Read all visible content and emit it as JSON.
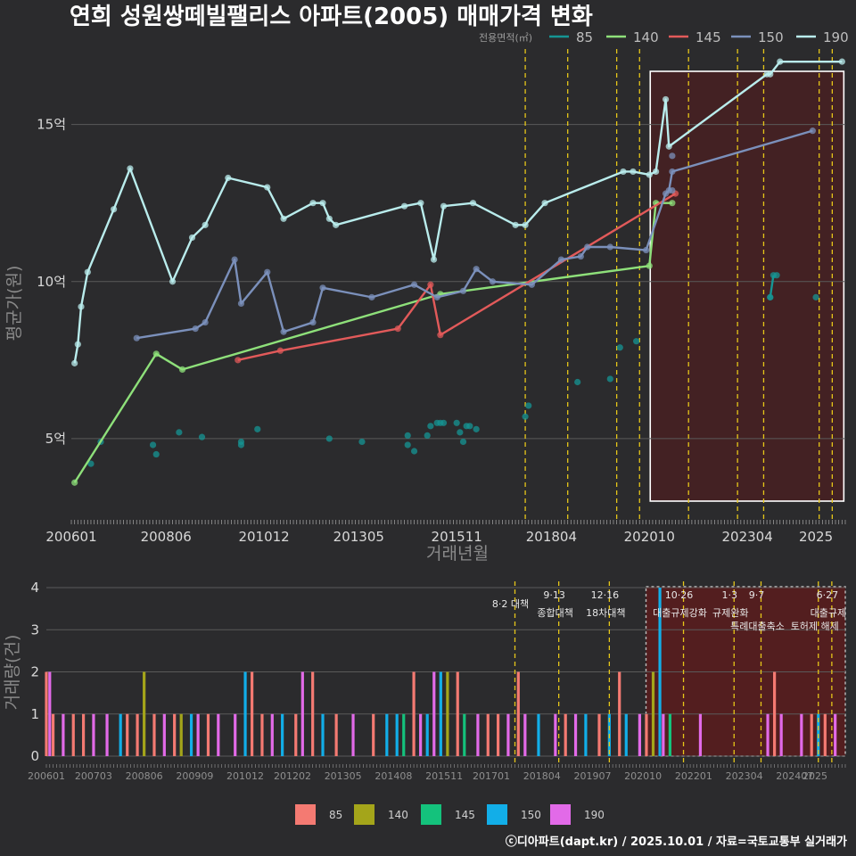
{
  "title": "연희 성원쌍떼빌팰리스 아파트(2005) 매매가격 변화",
  "footer": "ⓒ디아파트(dapt.kr) / 2025.10.01 / 자료=국토교통부 실거래가",
  "colors": {
    "bg": "#2b2b2d",
    "grid": "#5a5a5a",
    "vline": "#e6c619",
    "highlight_fill": "#4a1f20",
    "s85_line": "#159594",
    "s140_line": "#8ee07a",
    "s145_line": "#e25a5a",
    "s150_line": "#7b90bb",
    "s190_line": "#b9ecec",
    "b85": "#f47a72",
    "b140": "#a4a51a",
    "b145": "#14c27c",
    "b150": "#12aee8",
    "b190": "#e26ae8"
  },
  "chart_data": [
    {
      "type": "line",
      "xlabel": "거래년월",
      "ylabel": "평균가(원)",
      "x_ticks": [
        "200601",
        "200806",
        "201012",
        "201305",
        "201511",
        "201804",
        "202010",
        "202304",
        "2025"
      ],
      "y_ticks": [
        {
          "v": 5,
          "label": "5억"
        },
        {
          "v": 10,
          "label": "10억"
        },
        {
          "v": 15,
          "label": "15억"
        }
      ],
      "ylim": [
        2.5,
        17.6
      ],
      "legend_title": "전용면적(㎡)",
      "legend": [
        "85",
        "140",
        "145",
        "150",
        "190"
      ],
      "highlight_range": [
        "2021-01",
        "2025-09"
      ],
      "policy_lines": [
        "2017-08",
        "2018-09",
        "2019-12",
        "2020-07",
        "2021-10",
        "2023-01",
        "2023-09",
        "2025-02",
        "2025-06"
      ],
      "series": [
        {
          "name": "85",
          "line": false,
          "points": [
            [
              "2008-02",
              4.8
            ],
            [
              "2008-03",
              4.5
            ],
            [
              "2008-10",
              5.2
            ],
            [
              "2009-05",
              5.05
            ],
            [
              "2010-05",
              4.8
            ],
            [
              "2010-05",
              4.9
            ],
            [
              "2010-10",
              5.3
            ],
            [
              "2012-08",
              5.0
            ],
            [
              "2013-06",
              4.9
            ],
            [
              "2014-08",
              5.1
            ],
            [
              "2014-08",
              4.8
            ],
            [
              "2014-10",
              4.6
            ],
            [
              "2015-02",
              5.1
            ],
            [
              "2015-03",
              5.4
            ],
            [
              "2015-05",
              5.5
            ],
            [
              "2015-06",
              5.5
            ],
            [
              "2015-07",
              5.5
            ],
            [
              "2015-11",
              5.5
            ],
            [
              "2015-12",
              5.2
            ],
            [
              "2016-01",
              4.9
            ],
            [
              "2016-02",
              5.4
            ],
            [
              "2016-03",
              5.4
            ],
            [
              "2016-05",
              5.3
            ],
            [
              "2017-08",
              5.7
            ],
            [
              "2017-09",
              6.05
            ],
            [
              "2018-12",
              6.8
            ],
            [
              "2019-10",
              6.9
            ],
            [
              "2020-01",
              7.9
            ],
            [
              "2020-06",
              8.1
            ],
            [
              "2023-11",
              9.5
            ],
            [
              "2024-01",
              10.2
            ],
            [
              "2025-01",
              9.5
            ],
            [
              "2006-10",
              4.9
            ],
            [
              "2006-07",
              4.2
            ]
          ]
        },
        {
          "name": "85",
          "line": true,
          "points": [
            [
              "2023-11",
              9.5
            ],
            [
              "2023-12",
              10.2
            ]
          ]
        },
        {
          "name": "140",
          "line": true,
          "points": [
            [
              "2006-02",
              3.6
            ],
            [
              "2008-03",
              7.7
            ],
            [
              "2008-11",
              7.2
            ],
            [
              "2015-06",
              9.6
            ],
            [
              "2020-10",
              10.5
            ],
            [
              "2020-12",
              12.5
            ],
            [
              "2021-05",
              12.5
            ]
          ]
        },
        {
          "name": "145",
          "line": true,
          "points": [
            [
              "2010-04",
              7.5
            ],
            [
              "2011-05",
              7.8
            ],
            [
              "2014-05",
              8.5
            ],
            [
              "2015-03",
              9.9
            ],
            [
              "2015-06",
              8.3
            ],
            [
              "2021-06",
              12.8
            ]
          ]
        },
        {
          "name": "150",
          "line": true,
          "points": [
            [
              "2007-09",
              8.2
            ],
            [
              "2009-03",
              8.5
            ],
            [
              "2009-06",
              8.7
            ],
            [
              "2010-03",
              10.7
            ],
            [
              "2010-05",
              9.3
            ],
            [
              "2011-01",
              10.3
            ],
            [
              "2011-06",
              8.4
            ],
            [
              "2012-03",
              8.7
            ],
            [
              "2012-06",
              9.8
            ],
            [
              "2013-09",
              9.5
            ],
            [
              "2014-10",
              9.9
            ],
            [
              "2015-05",
              9.5
            ],
            [
              "2016-01",
              9.7
            ],
            [
              "2016-05",
              10.4
            ],
            [
              "2016-10",
              10.0
            ],
            [
              "2017-10",
              9.9
            ],
            [
              "2018-07",
              10.7
            ],
            [
              "2019-01",
              10.8
            ],
            [
              "2019-03",
              11.1
            ],
            [
              "2019-10",
              11.1
            ],
            [
              "2020-09",
              11.0
            ],
            [
              "2021-03",
              12.8
            ],
            [
              "2021-04",
              12.9
            ],
            [
              "2021-05",
              13.5
            ],
            [
              "2024-12",
              14.8
            ]
          ]
        },
        {
          "name": "150",
          "line": false,
          "points": [
            [
              "2021-05",
              14.0
            ],
            [
              "2021-05",
              12.9
            ]
          ]
        },
        {
          "name": "190",
          "line": true,
          "points": [
            [
              "2006-02",
              7.4
            ],
            [
              "2006-03",
              8.0
            ],
            [
              "2006-04",
              9.2
            ],
            [
              "2006-06",
              10.3
            ],
            [
              "2007-02",
              12.3
            ],
            [
              "2007-07",
              13.6
            ],
            [
              "2008-08",
              10.0
            ],
            [
              "2009-02",
              11.4
            ],
            [
              "2009-06",
              11.8
            ],
            [
              "2010-01",
              13.3
            ],
            [
              "2011-01",
              13.0
            ],
            [
              "2011-06",
              12.0
            ],
            [
              "2012-03",
              12.5
            ],
            [
              "2012-06",
              12.5
            ],
            [
              "2012-08",
              12.0
            ],
            [
              "2012-10",
              11.8
            ],
            [
              "2014-07",
              12.4
            ],
            [
              "2014-12",
              12.5
            ],
            [
              "2015-04",
              10.7
            ],
            [
              "2015-07",
              12.4
            ],
            [
              "2016-04",
              12.5
            ],
            [
              "2017-05",
              11.8
            ],
            [
              "2017-08",
              11.8
            ],
            [
              "2018-02",
              12.5
            ],
            [
              "2020-02",
              13.5
            ],
            [
              "2020-05",
              13.5
            ],
            [
              "2020-10",
              13.4
            ],
            [
              "2020-12",
              13.5
            ],
            [
              "2021-03",
              15.8
            ],
            [
              "2021-04",
              14.3
            ],
            [
              "2023-10",
              16.6
            ],
            [
              "2023-11",
              16.6
            ],
            [
              "2024-02",
              17.0
            ],
            [
              "2025-09",
              17.0
            ]
          ]
        }
      ]
    },
    {
      "type": "bar",
      "ylabel": "거래량(건)",
      "x_ticks": [
        "200601",
        "200703",
        "200806",
        "200909",
        "201012",
        "201202",
        "201305",
        "201408",
        "201511",
        "201701",
        "201804",
        "201907",
        "202010",
        "202201",
        "202304",
        "202407",
        "2025"
      ],
      "y_ticks": [
        0,
        1,
        2,
        3,
        4
      ],
      "legend": [
        "85",
        "140",
        "145",
        "150",
        "190"
      ],
      "annotations": [
        {
          "date": "2017-08",
          "line1": "8·2 대책",
          "line2": ""
        },
        {
          "date": "2018-09",
          "line1": "9·13",
          "line2": "종합대책"
        },
        {
          "date": "2019-12",
          "line1": "12·16",
          "line2": "18차대책"
        },
        {
          "date": "2021-10",
          "line1": "10·26",
          "line2": "대출규제강화"
        },
        {
          "date": "2023-01",
          "line1": "1·3",
          "line2": "규제완화"
        },
        {
          "date": "2023-09",
          "line1": "9·7",
          "line2": "특례대출축소"
        },
        {
          "date": "2025-02",
          "line1": "",
          "line2": "토허제 해제"
        },
        {
          "date": "2025-06",
          "line1": "6·27",
          "line2": "대출규제"
        }
      ],
      "bars": [
        {
          "d": "2006-01",
          "s": "b85",
          "v": 2
        },
        {
          "d": "2006-02",
          "s": "b190",
          "v": 2
        },
        {
          "d": "2006-03",
          "s": "b85",
          "v": 1
        },
        {
          "d": "2006-06",
          "s": "b190",
          "v": 1
        },
        {
          "d": "2006-09",
          "s": "b85",
          "v": 1
        },
        {
          "d": "2006-12",
          "s": "b85",
          "v": 1
        },
        {
          "d": "2007-03",
          "s": "b190",
          "v": 1
        },
        {
          "d": "2007-07",
          "s": "b190",
          "v": 1
        },
        {
          "d": "2007-11",
          "s": "b150",
          "v": 1
        },
        {
          "d": "2008-01",
          "s": "b85",
          "v": 1
        },
        {
          "d": "2008-04",
          "s": "b85",
          "v": 1
        },
        {
          "d": "2008-06",
          "s": "b140",
          "v": 2
        },
        {
          "d": "2008-09",
          "s": "b85",
          "v": 1
        },
        {
          "d": "2008-12",
          "s": "b190",
          "v": 1
        },
        {
          "d": "2009-03",
          "s": "b85",
          "v": 1
        },
        {
          "d": "2009-05",
          "s": "b140",
          "v": 1
        },
        {
          "d": "2009-08",
          "s": "b150",
          "v": 1
        },
        {
          "d": "2009-10",
          "s": "b190",
          "v": 1
        },
        {
          "d": "2010-01",
          "s": "b85",
          "v": 1
        },
        {
          "d": "2010-04",
          "s": "b190",
          "v": 1
        },
        {
          "d": "2010-09",
          "s": "b190",
          "v": 1
        },
        {
          "d": "2010-12",
          "s": "b150",
          "v": 2
        },
        {
          "d": "2011-02",
          "s": "b85",
          "v": 2
        },
        {
          "d": "2011-05",
          "s": "b85",
          "v": 1
        },
        {
          "d": "2011-08",
          "s": "b190",
          "v": 1
        },
        {
          "d": "2011-11",
          "s": "b150",
          "v": 1
        },
        {
          "d": "2012-03",
          "s": "b85",
          "v": 1
        },
        {
          "d": "2012-05",
          "s": "b190",
          "v": 2
        },
        {
          "d": "2012-08",
          "s": "b85",
          "v": 2
        },
        {
          "d": "2012-11",
          "s": "b150",
          "v": 1
        },
        {
          "d": "2013-03",
          "s": "b85",
          "v": 1
        },
        {
          "d": "2013-08",
          "s": "b190",
          "v": 1
        },
        {
          "d": "2014-02",
          "s": "b85",
          "v": 1
        },
        {
          "d": "2014-06",
          "s": "b150",
          "v": 1
        },
        {
          "d": "2014-09",
          "s": "b150",
          "v": 1
        },
        {
          "d": "2014-11",
          "s": "b145",
          "v": 1
        },
        {
          "d": "2015-02",
          "s": "b85",
          "v": 2
        },
        {
          "d": "2015-04",
          "s": "b190",
          "v": 1
        },
        {
          "d": "2015-06",
          "s": "b150",
          "v": 1
        },
        {
          "d": "2015-08",
          "s": "b190",
          "v": 2
        },
        {
          "d": "2015-10",
          "s": "b150",
          "v": 2
        },
        {
          "d": "2015-12",
          "s": "b140",
          "v": 2
        },
        {
          "d": "2016-03",
          "s": "b85",
          "v": 2
        },
        {
          "d": "2016-05",
          "s": "b145",
          "v": 1
        },
        {
          "d": "2016-09",
          "s": "b190",
          "v": 1
        },
        {
          "d": "2016-12",
          "s": "b85",
          "v": 1
        },
        {
          "d": "2017-03",
          "s": "b85",
          "v": 1
        },
        {
          "d": "2017-06",
          "s": "b190",
          "v": 1
        },
        {
          "d": "2017-09",
          "s": "b85",
          "v": 2
        },
        {
          "d": "2017-11",
          "s": "b190",
          "v": 1
        },
        {
          "d": "2018-03",
          "s": "b150",
          "v": 1
        },
        {
          "d": "2018-08",
          "s": "b190",
          "v": 1
        },
        {
          "d": "2018-11",
          "s": "b85",
          "v": 1
        },
        {
          "d": "2019-02",
          "s": "b190",
          "v": 1
        },
        {
          "d": "2019-05",
          "s": "b150",
          "v": 1
        },
        {
          "d": "2019-09",
          "s": "b85",
          "v": 1
        },
        {
          "d": "2019-12",
          "s": "b150",
          "v": 1
        },
        {
          "d": "2020-03",
          "s": "b85",
          "v": 2
        },
        {
          "d": "2020-05",
          "s": "b150",
          "v": 1
        },
        {
          "d": "2020-09",
          "s": "b190",
          "v": 1
        },
        {
          "d": "2020-11",
          "s": "b85",
          "v": 1
        },
        {
          "d": "2021-01",
          "s": "b140",
          "v": 2
        },
        {
          "d": "2021-03",
          "s": "b150",
          "v": 4
        },
        {
          "d": "2021-04",
          "s": "b190",
          "v": 1
        },
        {
          "d": "2021-06",
          "s": "b145",
          "v": 1
        },
        {
          "d": "2022-03",
          "s": "b190",
          "v": 1
        },
        {
          "d": "2023-11",
          "s": "b190",
          "v": 1
        },
        {
          "d": "2024-01",
          "s": "b85",
          "v": 2
        },
        {
          "d": "2024-03",
          "s": "b190",
          "v": 1
        },
        {
          "d": "2024-09",
          "s": "b190",
          "v": 1
        },
        {
          "d": "2024-12",
          "s": "b85",
          "v": 1
        },
        {
          "d": "2025-02",
          "s": "b150",
          "v": 1
        },
        {
          "d": "2025-04",
          "s": "b85",
          "v": 1
        },
        {
          "d": "2025-07",
          "s": "b190",
          "v": 1
        }
      ]
    }
  ]
}
